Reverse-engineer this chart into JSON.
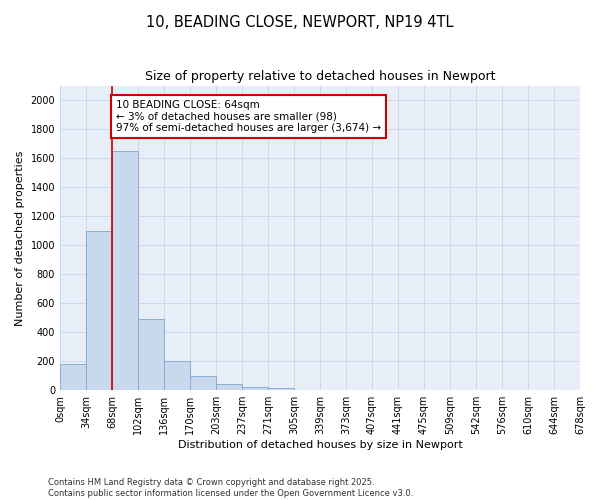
{
  "title_line1": "10, BEADING CLOSE, NEWPORT, NP19 4TL",
  "title_line2": "Size of property relative to detached houses in Newport",
  "xlabel": "Distribution of detached houses by size in Newport",
  "ylabel": "Number of detached properties",
  "bar_values": [
    180,
    1100,
    1650,
    490,
    200,
    100,
    40,
    20,
    15,
    0,
    0,
    0,
    0,
    0,
    0,
    0,
    0,
    0,
    0,
    0
  ],
  "categories": [
    "0sqm",
    "34sqm",
    "68sqm",
    "102sqm",
    "136sqm",
    "170sqm",
    "203sqm",
    "237sqm",
    "271sqm",
    "305sqm",
    "339sqm",
    "373sqm",
    "407sqm",
    "441sqm",
    "475sqm",
    "509sqm",
    "542sqm",
    "576sqm",
    "610sqm",
    "644sqm",
    "678sqm"
  ],
  "bar_color": "#c8d9ee",
  "bar_edge_color": "#7aa8d4",
  "vline_color": "#cc0000",
  "vline_x": 2,
  "annotation_box_text": "10 BEADING CLOSE: 64sqm\n← 3% of detached houses are smaller (98)\n97% of semi-detached houses are larger (3,674) →",
  "annotation_box_color": "#cc0000",
  "annotation_box_fill": "#ffffff",
  "ylim": [
    0,
    2100
  ],
  "yticks": [
    0,
    200,
    400,
    600,
    800,
    1000,
    1200,
    1400,
    1600,
    1800,
    2000
  ],
  "grid_color": "#c8d4e8",
  "background_color": "#e8eef8",
  "footer_text": "Contains HM Land Registry data © Crown copyright and database right 2025.\nContains public sector information licensed under the Open Government Licence v3.0.",
  "title_fontsize": 10.5,
  "subtitle_fontsize": 9,
  "axis_label_fontsize": 8,
  "tick_fontsize": 7,
  "annotation_fontsize": 7.5,
  "footer_fontsize": 6
}
